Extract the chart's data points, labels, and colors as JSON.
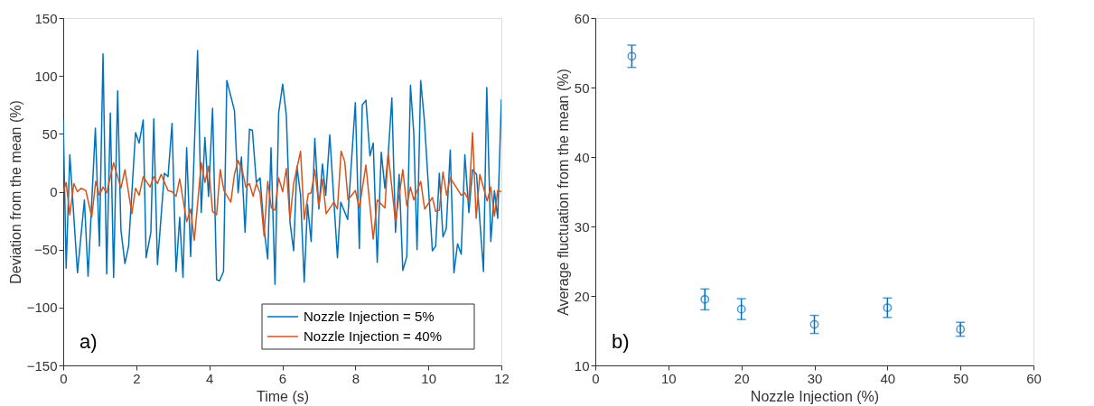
{
  "chart_data": [
    {
      "type": "line",
      "xlabel": "Time (s)",
      "ylabel": "Deviation from the mean (%)",
      "xlim": [
        0,
        12
      ],
      "xticks": [
        0,
        2,
        4,
        6,
        8,
        10,
        12
      ],
      "ylim": [
        -150,
        150
      ],
      "yticks": [
        -150,
        -100,
        -50,
        0,
        50,
        100,
        150
      ],
      "grid": false,
      "legend": "bottom right",
      "annotations": [
        "a)"
      ],
      "series": [
        {
          "name": "Nozzle Injection = 5%",
          "color": "#0072bd",
          "x": [
            0,
            0.08,
            0.18,
            0.39,
            0.58,
            0.68,
            0.88,
            0.99,
            1.09,
            1.19,
            1.29,
            1.38,
            1.49,
            1.58,
            1.69,
            1.79,
            1.98,
            2.08,
            2.19,
            2.27,
            2.4,
            2.48,
            2.58,
            2.77,
            2.87,
            2.98,
            3.09,
            3.19,
            3.28,
            3.38,
            3.49,
            3.68,
            3.78,
            3.88,
            3.98,
            4.09,
            4.2,
            4.28,
            4.39,
            4.48,
            4.69,
            4.79,
            4.88,
            4.98,
            5.1,
            5.18,
            5.29,
            5.39,
            5.5,
            5.6,
            5.69,
            5.8,
            5.9,
            6.01,
            6.11,
            6.21,
            6.31,
            6.4,
            6.5,
            6.6,
            6.69,
            6.79,
            6.89,
            7.0,
            7.1,
            7.19,
            7.3,
            7.51,
            7.6,
            7.79,
            8.0,
            8.11,
            8.19,
            8.29,
            8.4,
            8.49,
            8.6,
            8.71,
            8.81,
            8.9,
            9.0,
            9.1,
            9.2,
            9.3,
            9.41,
            9.51,
            9.6,
            9.69,
            9.79,
            9.89,
            10.11,
            10.2,
            10.3,
            10.4,
            10.49,
            10.6,
            10.7,
            10.8,
            10.9,
            11.0,
            11.11,
            11.21,
            11.32,
            11.51,
            11.6,
            11.71,
            11.81,
            11.9,
            12.0
          ],
          "values": [
            62,
            -66,
            32,
            -70,
            -7,
            -73,
            55,
            -47,
            119,
            -71,
            68,
            -74,
            87,
            -33,
            -62,
            -47,
            51,
            42,
            62,
            -57,
            -35,
            63,
            -63,
            16,
            13,
            59,
            -69,
            -22,
            -74,
            38,
            -56,
            122,
            -18,
            47,
            -4,
            72,
            -76,
            -77,
            -69,
            96,
            70,
            -1,
            30,
            -35,
            54,
            53,
            8,
            12,
            -32,
            -58,
            38,
            -80,
            68,
            93,
            66,
            -26,
            -51,
            22,
            -3,
            -78,
            -11,
            -43,
            46,
            -15,
            24,
            -3,
            49,
            -57,
            -9,
            -24,
            77,
            -49,
            75,
            79,
            31,
            42,
            -61,
            34,
            3,
            32,
            81,
            -35,
            15,
            -68,
            -56,
            92,
            51,
            -50,
            96,
            62,
            -51,
            -47,
            16,
            -39,
            -32,
            36,
            -70,
            -45,
            -54,
            32,
            -18,
            19,
            15,
            -69,
            90,
            -43,
            1,
            -23,
            80
          ]
        },
        {
          "name": "Nozzle Injection = 40%",
          "color": "#d95319",
          "x": [
            0,
            0.08,
            0.18,
            0.29,
            0.39,
            0.49,
            0.62,
            0.78,
            0.89,
            0.99,
            1.09,
            1.19,
            1.38,
            1.58,
            1.69,
            1.88,
            1.98,
            2.08,
            2.19,
            2.38,
            2.48,
            2.58,
            2.68,
            2.87,
            2.98,
            3.09,
            3.19,
            3.38,
            3.49,
            3.59,
            3.78,
            3.88,
            3.98,
            4.09,
            4.2,
            4.3,
            4.4,
            4.59,
            4.69,
            4.79,
            4.9,
            5.0,
            5.1,
            5.2,
            5.29,
            5.39,
            5.5,
            5.6,
            5.7,
            5.8,
            5.9,
            6.01,
            6.11,
            6.21,
            6.31,
            6.5,
            6.6,
            6.71,
            6.79,
            6.89,
            7.0,
            7.1,
            7.2,
            7.41,
            7.51,
            7.61,
            7.71,
            7.8,
            8.0,
            8.11,
            8.29,
            8.49,
            8.6,
            8.81,
            8.9,
            9.1,
            9.3,
            9.41,
            9.51,
            9.6,
            9.79,
            9.9,
            10.11,
            10.2,
            10.3,
            10.4,
            10.5,
            10.6,
            10.9,
            11.0,
            11.11,
            11.21,
            11.31,
            11.41,
            11.61,
            11.71,
            11.81,
            11.9,
            12.0
          ],
          "values": [
            0,
            8,
            -20,
            7,
            0,
            3,
            1,
            -22,
            9,
            -3,
            4,
            -1,
            25,
            3,
            19,
            -19,
            3,
            -3,
            13,
            4,
            13,
            7,
            15,
            1,
            0,
            -4,
            11,
            -26,
            -15,
            -42,
            25,
            8,
            22,
            -17,
            -20,
            19,
            1,
            -9,
            15,
            27,
            19,
            4,
            7,
            -4,
            7,
            -1,
            -38,
            9,
            -14,
            -16,
            12,
            0,
            20,
            -24,
            7,
            35,
            -24,
            -2,
            -1,
            19,
            -12,
            11,
            -19,
            -9,
            -15,
            35,
            26,
            -7,
            1,
            -14,
            23,
            -41,
            -7,
            -14,
            33,
            -26,
            19,
            -12,
            4,
            -7,
            9,
            -15,
            -5,
            -17,
            -16,
            17,
            -3,
            12,
            -3,
            -1,
            -8,
            51,
            -23,
            15,
            -8,
            4,
            -21,
            1,
            0
          ]
        }
      ]
    },
    {
      "type": "scatter",
      "xlabel": "Nozzle Injection (%)",
      "ylabel": "Average fluctuation from the mean (%)",
      "xlim": [
        0,
        60
      ],
      "xticks": [
        0,
        10,
        20,
        30,
        40,
        50,
        60
      ],
      "ylim": [
        10,
        60
      ],
      "yticks": [
        10,
        20,
        30,
        40,
        50,
        60
      ],
      "grid": false,
      "marker": "circle",
      "annotations": [
        "b)"
      ],
      "series": [
        {
          "color": "#0072bd",
          "x": [
            5,
            15,
            20,
            30,
            40,
            50
          ],
          "values": [
            54.5,
            19.5,
            18.1,
            15.9,
            18.3,
            15.2
          ],
          "errors": [
            1.6,
            1.5,
            1.5,
            1.3,
            1.4,
            1.0
          ]
        }
      ]
    }
  ]
}
